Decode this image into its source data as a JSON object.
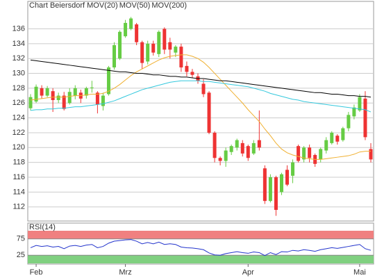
{
  "chart_data": {
    "type": "candlestick",
    "title": "Chart Beiersdorf",
    "title_color": "#e05030",
    "categories": [
      null,
      "Feb",
      null,
      null,
      null,
      null,
      null,
      null,
      null,
      null,
      null,
      null,
      null,
      null,
      null,
      null,
      null,
      "Mrz",
      null,
      null,
      null,
      null,
      null,
      null,
      null,
      null,
      null,
      null,
      null,
      null,
      null,
      null,
      null,
      null,
      null,
      null,
      null,
      null,
      null,
      "Apr",
      null,
      null,
      null,
      null,
      null,
      null,
      null,
      null,
      null,
      null,
      null,
      null,
      null,
      null,
      null,
      null,
      null,
      null,
      null,
      "Mai",
      null,
      null
    ],
    "open": [
      125.3,
      126.2,
      128,
      127,
      127.6,
      126.4,
      127,
      126,
      127,
      127.4,
      127,
      128,
      127.4,
      125.6,
      127.2,
      130.8,
      132,
      135,
      136,
      136.6,
      134.2,
      131.6,
      134,
      132.6,
      136,
      134.2,
      132.8,
      133.6,
      131,
      130.2,
      129.6,
      128.6,
      127.4,
      122,
      118.6,
      118.2,
      119.4,
      120,
      120.6,
      120.2,
      119.2,
      121,
      117.2,
      112.8,
      116,
      114,
      117,
      116.2,
      120.2,
      118.4,
      120,
      119,
      118.4,
      119.6,
      120.6,
      121.6,
      121,
      122.6,
      124.2,
      125,
      126.6,
      119.8
    ],
    "high": [
      127.2,
      128.5,
      128.4,
      128.3,
      128,
      127.4,
      127.5,
      128,
      128.4,
      127.8,
      128.2,
      129,
      127.6,
      127.4,
      131,
      134.2,
      135.8,
      137.2,
      137.6,
      136.8,
      134.4,
      134.4,
      134.4,
      135.8,
      136.2,
      134.8,
      133.8,
      134,
      131.6,
      130.6,
      130,
      129.2,
      127.6,
      122.2,
      118.8,
      120,
      120.4,
      121.2,
      121,
      120.4,
      121,
      125,
      117.6,
      116.4,
      116.2,
      116.6,
      117.6,
      118.4,
      120.4,
      120.2,
      120.4,
      119.2,
      120,
      121.4,
      122.2,
      121.8,
      122.8,
      124.8,
      125.8,
      127.2,
      127.6,
      120.6
    ],
    "low": [
      125,
      126,
      126.6,
      126.8,
      124.8,
      126,
      125,
      125.8,
      126.5,
      126,
      126.6,
      127.4,
      124.6,
      125,
      127,
      130.5,
      131.8,
      134.8,
      135.8,
      133.8,
      130.6,
      131.2,
      132.4,
      132.2,
      132.6,
      132,
      132.2,
      130.2,
      129.6,
      129.4,
      128.6,
      126.8,
      121.8,
      118,
      117.6,
      117.4,
      119,
      119.6,
      118.8,
      118.2,
      119,
      119.6,
      112.4,
      112.6,
      110.8,
      113.6,
      114.8,
      115.2,
      118,
      118,
      118,
      117.4,
      118,
      119.2,
      120.4,
      120.4,
      120.8,
      122.2,
      123.8,
      124.8,
      121,
      118
    ],
    "close": [
      126.8,
      128.2,
      127,
      128,
      126.4,
      127,
      125.2,
      127.5,
      128,
      126.6,
      128,
      128.1,
      125.8,
      127,
      130.8,
      133.8,
      135.6,
      136.8,
      137.4,
      134.2,
      131.4,
      134,
      132.8,
      135.6,
      133.2,
      133.2,
      133.6,
      130.8,
      130.2,
      129.8,
      129,
      127.2,
      122,
      118.6,
      118.2,
      119.6,
      120.2,
      121,
      119.2,
      118.6,
      120.6,
      120,
      112.8,
      116,
      111.6,
      116.4,
      115,
      118,
      118.2,
      120,
      118.6,
      117.8,
      119.8,
      121,
      122,
      120.8,
      122.6,
      124.4,
      125.4,
      126.8,
      121.4,
      118.4
    ],
    "up_color": "#66cc44",
    "down_color": "#ee3333",
    "series": [
      {
        "name": "MOV(20)",
        "color": "#f0b030",
        "values": [
          126.4,
          126.5,
          126.6,
          126.7,
          126.8,
          126.8,
          126.8,
          126.9,
          127,
          127,
          127.1,
          127.2,
          127.2,
          127.3,
          127.6,
          128,
          128.5,
          129.1,
          129.7,
          130.2,
          130.6,
          131,
          131.4,
          131.8,
          132.1,
          132.3,
          132.4,
          132.5,
          132.5,
          132.3,
          132,
          131.5,
          130.8,
          130,
          129.2,
          128.4,
          127.6,
          126.8,
          126,
          125.1,
          124.3,
          123.5,
          122.5,
          121.6,
          120.6,
          119.8,
          119.3,
          119,
          118.8,
          118.6,
          118.5,
          118.4,
          118.4,
          118.5,
          118.6,
          118.7,
          118.8,
          118.9,
          119.1,
          119.4,
          119.5,
          119.5
        ]
      },
      {
        "name": "MOV(50)",
        "color": "#33c8dd",
        "values": [
          125,
          125.1,
          125.1,
          125.2,
          125.2,
          125.3,
          125.3,
          125.4,
          125.5,
          125.5,
          125.6,
          125.7,
          125.8,
          125.9,
          126.1,
          126.3,
          126.6,
          126.9,
          127.2,
          127.5,
          127.8,
          128,
          128.2,
          128.4,
          128.6,
          128.8,
          128.9,
          129,
          129,
          129,
          129,
          128.9,
          128.9,
          128.8,
          128.7,
          128.6,
          128.5,
          128.4,
          128.3,
          128.2,
          128,
          127.8,
          127.6,
          127.3,
          127.1,
          126.9,
          126.7,
          126.5,
          126.4,
          126.2,
          126.1,
          126,
          125.9,
          125.8,
          125.7,
          125.6,
          125.5,
          125.4,
          125.3,
          125.2,
          125.1,
          124.8
        ]
      },
      {
        "name": "MOV(200)",
        "color": "#000000",
        "values": [
          131.8,
          131.7,
          131.6,
          131.5,
          131.4,
          131.3,
          131.2,
          131.1,
          131,
          130.9,
          130.8,
          130.7,
          130.6,
          130.5,
          130.4,
          130.3,
          130.2,
          130.2,
          130.1,
          130,
          130,
          129.9,
          129.8,
          129.8,
          129.7,
          129.6,
          129.6,
          129.5,
          129.5,
          129.4,
          129.3,
          129.3,
          129.2,
          129.1,
          129,
          129,
          128.9,
          128.8,
          128.7,
          128.6,
          128.5,
          128.4,
          128.3,
          128.2,
          128.1,
          128,
          127.9,
          127.8,
          127.7,
          127.6,
          127.5,
          127.4,
          127.4,
          127.3,
          127.2,
          127.2,
          127.1,
          127,
          127,
          126.9,
          126.9,
          126.8
        ]
      }
    ],
    "ylim": [
      110.1,
      139.7
    ],
    "yticks": [
      112,
      114,
      116,
      118,
      120,
      122,
      124,
      126,
      128,
      130,
      132,
      134,
      136
    ],
    "grid": true,
    "rsi": {
      "title": "RSI(14)",
      "color": "#2233cc",
      "values": [
        48,
        55,
        52,
        54,
        50,
        52,
        45,
        53,
        55,
        52,
        56,
        58,
        48,
        52,
        62,
        68,
        70,
        72,
        73,
        68,
        60,
        64,
        60,
        65,
        58,
        60,
        58,
        50,
        48,
        47,
        45,
        42,
        32,
        26,
        25,
        30,
        33,
        36,
        33,
        31,
        35,
        33,
        24,
        33,
        27,
        36,
        35,
        40,
        38,
        42,
        40,
        37,
        42,
        45,
        48,
        46,
        49,
        52,
        55,
        58,
        45,
        40
      ],
      "ylim": [
        0,
        100
      ],
      "yticks": [
        25,
        75
      ],
      "upper_color": "#f08080",
      "lower_color": "#80d080"
    }
  }
}
